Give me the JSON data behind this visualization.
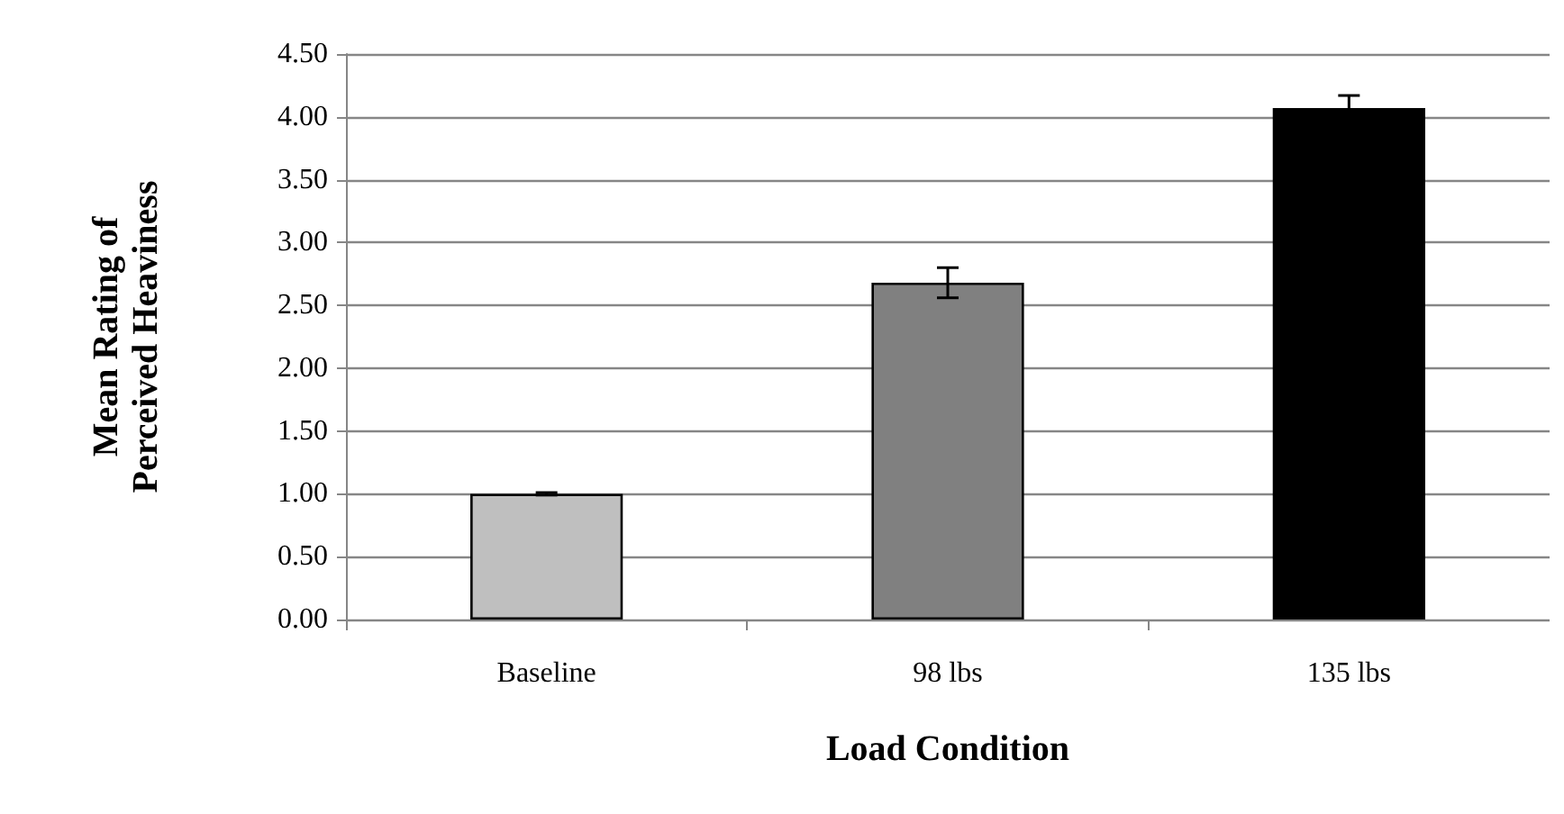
{
  "chart_data": {
    "type": "bar",
    "xlabel": "Load Condition",
    "ylabel": "Mean Rating of\nPerceived Heaviness",
    "categories": [
      "Baseline",
      "98 lbs",
      "135 lbs"
    ],
    "values": [
      1.0,
      2.68,
      4.07
    ],
    "colors": [
      "#bfbfbf",
      "#808080",
      "#000000"
    ],
    "errors": [
      0.01,
      0.12,
      0.1
    ],
    "ylim": [
      0,
      4.5
    ],
    "yticks": [
      {
        "value": 0,
        "label": "0.00"
      },
      {
        "value": 0.5,
        "label": "0.50"
      },
      {
        "value": 1,
        "label": "1.00"
      },
      {
        "value": 1.5,
        "label": "1.50"
      },
      {
        "value": 2,
        "label": "2.00"
      },
      {
        "value": 2.5,
        "label": "2.50"
      },
      {
        "value": 3,
        "label": "3.00"
      },
      {
        "value": 3.5,
        "label": "3.50"
      },
      {
        "value": 4,
        "label": "4.00"
      },
      {
        "value": 4.5,
        "label": "4.50"
      }
    ],
    "grid": "y"
  }
}
